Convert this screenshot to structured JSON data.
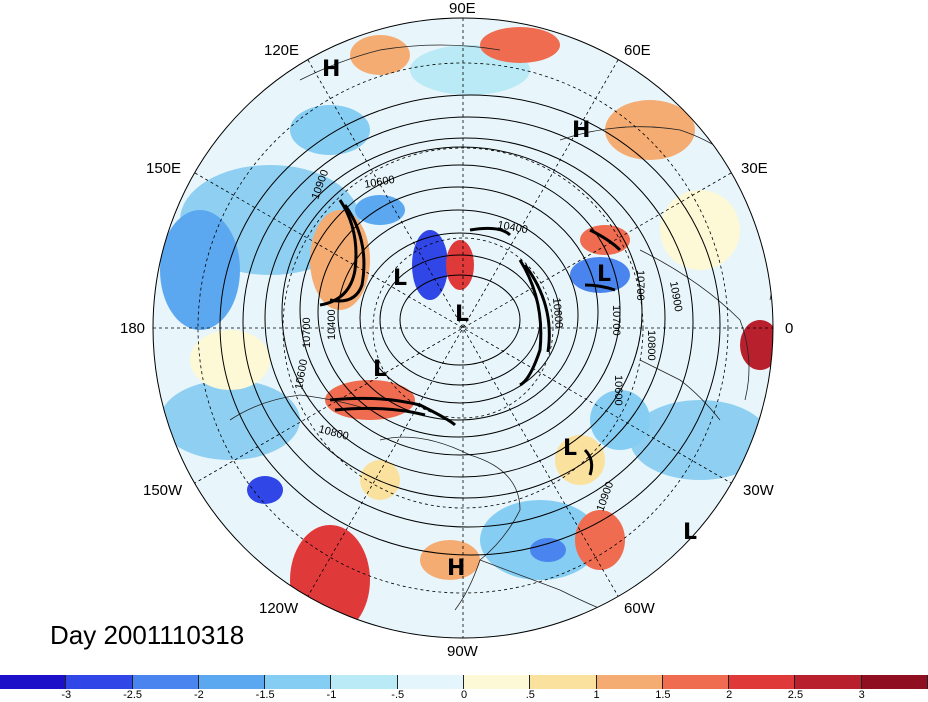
{
  "map": {
    "lon_labels": [
      "90E",
      "60E",
      "30E",
      "0",
      "30W",
      "60W",
      "90W",
      "120W",
      "150W",
      "180",
      "150E",
      "120E"
    ],
    "contour_labels": [
      "10900",
      "10600",
      "10400",
      "10700",
      "10900",
      "10800",
      "10700",
      "10600",
      "10800",
      "10900",
      "10600",
      "10400",
      "10600",
      "10700"
    ],
    "pressure_centers": [
      "H",
      "H",
      "H",
      "L",
      "L",
      "L",
      "L",
      "L",
      "L"
    ]
  },
  "title": "Day 2001110318",
  "colorbar": {
    "ticks": [
      "-3",
      "-2.5",
      "-2",
      "-1.5",
      "-1",
      "-.5",
      "0",
      ".5",
      "1",
      "1.5",
      "2",
      "2.5",
      "3"
    ],
    "colors": [
      "#1d10c9",
      "#3046e6",
      "#4a84ee",
      "#5ca8f0",
      "#85cdf2",
      "#b9eaf6",
      "#e4f6fb",
      "#fdf8d5",
      "#fbe19e",
      "#f5ac72",
      "#ef6c50",
      "#e0393a",
      "#b8202d",
      "#8f0f21"
    ]
  }
}
